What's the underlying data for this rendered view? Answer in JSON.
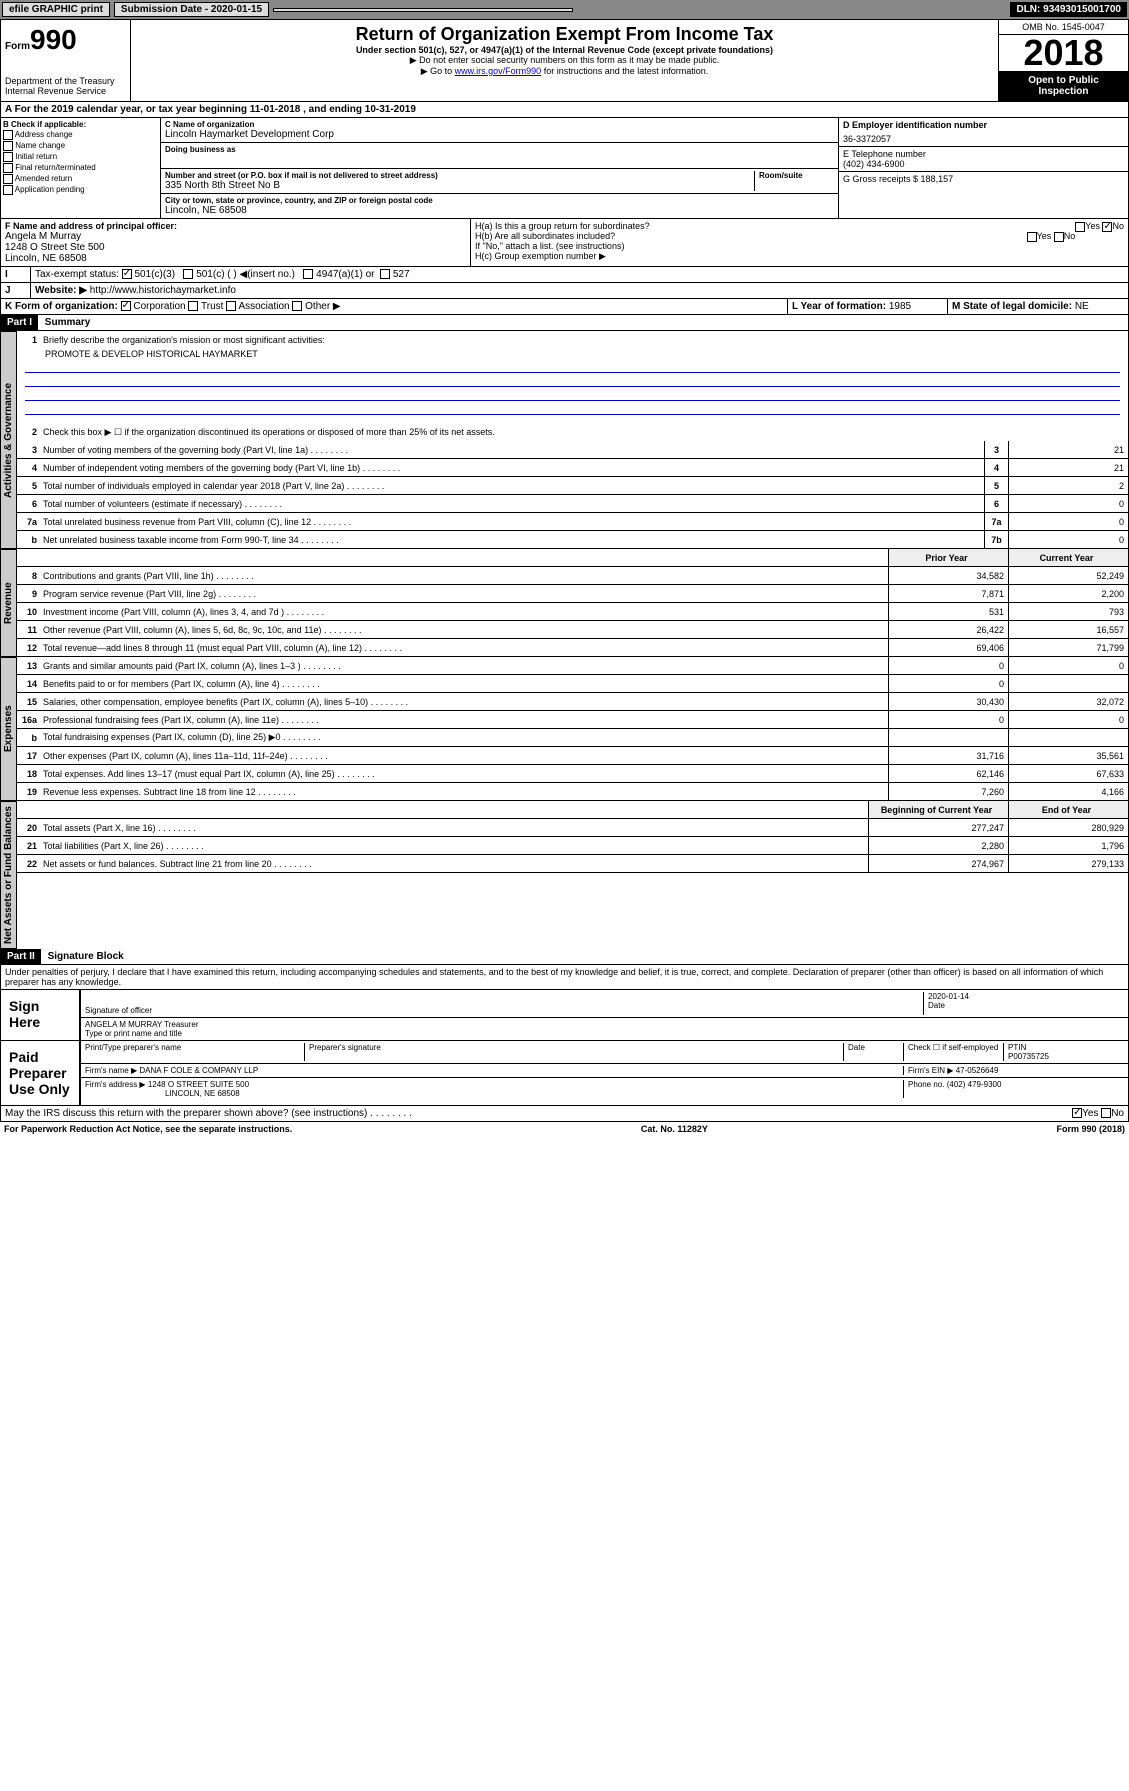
{
  "topbar": {
    "efile": "efile GRAPHIC print",
    "submission": "Submission Date - 2020-01-15",
    "dln": "DLN: 93493015001700"
  },
  "header": {
    "form_label": "Form",
    "form_num": "990",
    "dept": "Department of the Treasury\nInternal Revenue Service",
    "title": "Return of Organization Exempt From Income Tax",
    "subtitle": "Under section 501(c), 527, or 4947(a)(1) of the Internal Revenue Code (except private foundations)",
    "note1": "▶ Do not enter social security numbers on this form as it may be made public.",
    "note2": "▶ Go to www.irs.gov/Form990 for instructions and the latest information.",
    "omb": "OMB No. 1545-0047",
    "year": "2018",
    "open": "Open to Public Inspection"
  },
  "period": "For the 2019 calendar year, or tax year beginning 11-01-2018    , and ending 10-31-2019",
  "box_b": {
    "label": "B Check if applicable:",
    "items": [
      "Address change",
      "Name change",
      "Initial return",
      "Final return/terminated",
      "Amended return",
      "Application pending"
    ]
  },
  "box_c": {
    "name_label": "C Name of organization",
    "name": "Lincoln Haymarket Development Corp",
    "dba_label": "Doing business as",
    "addr_label": "Number and street (or P.O. box if mail is not delivered to street address)",
    "room_label": "Room/suite",
    "addr": "335 North 8th Street No B",
    "city_label": "City or town, state or province, country, and ZIP or foreign postal code",
    "city": "Lincoln, NE  68508"
  },
  "box_d": {
    "label": "D Employer identification number",
    "value": "36-3372057"
  },
  "box_e": {
    "label": "E Telephone number",
    "value": "(402) 434-6900"
  },
  "box_g": {
    "label": "G Gross receipts $",
    "value": "188,157"
  },
  "box_f": {
    "label": "F  Name and address of principal officer:",
    "name": "Angela M Murray",
    "addr1": "1248 O Street Ste 500",
    "addr2": "Lincoln, NE  68508"
  },
  "box_h": {
    "ha": "H(a)  Is this a group return for subordinates?",
    "hb": "H(b)  Are all subordinates included?",
    "hb_note": "If \"No,\" attach a list. (see instructions)",
    "hc": "H(c)  Group exemption number ▶"
  },
  "box_i": {
    "label": "Tax-exempt status:",
    "opt1": "501(c)(3)",
    "opt2": "501(c) (  ) ◀(insert no.)",
    "opt3": "4947(a)(1) or",
    "opt4": "527"
  },
  "box_j": {
    "label": "Website: ▶",
    "value": "http://www.historichaymarket.info"
  },
  "box_k": {
    "label": "K Form of organization:",
    "opts": [
      "Corporation",
      "Trust",
      "Association",
      "Other ▶"
    ]
  },
  "box_l": {
    "label": "L Year of formation:",
    "value": "1985"
  },
  "box_m": {
    "label": "M State of legal domicile:",
    "value": "NE"
  },
  "part1": {
    "header": "Part I",
    "title": "Summary",
    "line1": "Briefly describe the organization's mission or most significant activities:",
    "mission": "PROMOTE & DEVELOP HISTORICAL HAYMARKET",
    "line2": "Check this box ▶ ☐  if the organization discontinued its operations or disposed of more than 25% of its net assets.",
    "tabs": {
      "gov": "Activities & Governance",
      "rev": "Revenue",
      "exp": "Expenses",
      "net": "Net Assets or Fund Balances"
    }
  },
  "summary_lines": [
    {
      "n": "3",
      "d": "Number of voting members of the governing body (Part VI, line 1a)",
      "box": "3",
      "v": "21"
    },
    {
      "n": "4",
      "d": "Number of independent voting members of the governing body (Part VI, line 1b)",
      "box": "4",
      "v": "21"
    },
    {
      "n": "5",
      "d": "Total number of individuals employed in calendar year 2018 (Part V, line 2a)",
      "box": "5",
      "v": "2"
    },
    {
      "n": "6",
      "d": "Total number of volunteers (estimate if necessary)",
      "box": "6",
      "v": "0"
    },
    {
      "n": "7a",
      "d": "Total unrelated business revenue from Part VIII, column (C), line 12",
      "box": "7a",
      "v": "0"
    },
    {
      "n": "b",
      "d": "Net unrelated business taxable income from Form 990-T, line 34",
      "box": "7b",
      "v": "0"
    }
  ],
  "col_headers": {
    "prior": "Prior Year",
    "current": "Current Year",
    "begin": "Beginning of Current Year",
    "end": "End of Year"
  },
  "revenue_lines": [
    {
      "n": "8",
      "d": "Contributions and grants (Part VIII, line 1h)",
      "p": "34,582",
      "c": "52,249"
    },
    {
      "n": "9",
      "d": "Program service revenue (Part VIII, line 2g)",
      "p": "7,871",
      "c": "2,200"
    },
    {
      "n": "10",
      "d": "Investment income (Part VIII, column (A), lines 3, 4, and 7d )",
      "p": "531",
      "c": "793"
    },
    {
      "n": "11",
      "d": "Other revenue (Part VIII, column (A), lines 5, 6d, 8c, 9c, 10c, and 11e)",
      "p": "26,422",
      "c": "16,557"
    },
    {
      "n": "12",
      "d": "Total revenue—add lines 8 through 11 (must equal Part VIII, column (A), line 12)",
      "p": "69,406",
      "c": "71,799"
    }
  ],
  "expense_lines": [
    {
      "n": "13",
      "d": "Grants and similar amounts paid (Part IX, column (A), lines 1–3 )",
      "p": "0",
      "c": "0"
    },
    {
      "n": "14",
      "d": "Benefits paid to or for members (Part IX, column (A), line 4)",
      "p": "0",
      "c": ""
    },
    {
      "n": "15",
      "d": "Salaries, other compensation, employee benefits (Part IX, column (A), lines 5–10)",
      "p": "30,430",
      "c": "32,072"
    },
    {
      "n": "16a",
      "d": "Professional fundraising fees (Part IX, column (A), line 11e)",
      "p": "0",
      "c": "0"
    },
    {
      "n": "b",
      "d": "Total fundraising expenses (Part IX, column (D), line 25) ▶0",
      "p": "",
      "c": ""
    },
    {
      "n": "17",
      "d": "Other expenses (Part IX, column (A), lines 11a–11d, 11f–24e)",
      "p": "31,716",
      "c": "35,561"
    },
    {
      "n": "18",
      "d": "Total expenses. Add lines 13–17 (must equal Part IX, column (A), line 25)",
      "p": "62,146",
      "c": "67,633"
    },
    {
      "n": "19",
      "d": "Revenue less expenses. Subtract line 18 from line 12",
      "p": "7,260",
      "c": "4,166"
    }
  ],
  "net_lines": [
    {
      "n": "20",
      "d": "Total assets (Part X, line 16)",
      "p": "277,247",
      "c": "280,929"
    },
    {
      "n": "21",
      "d": "Total liabilities (Part X, line 26)",
      "p": "2,280",
      "c": "1,796"
    },
    {
      "n": "22",
      "d": "Net assets or fund balances. Subtract line 21 from line 20",
      "p": "274,967",
      "c": "279,133"
    }
  ],
  "part2": {
    "header": "Part II",
    "title": "Signature Block",
    "declaration": "Under penalties of perjury, I declare that I have examined this return, including accompanying schedules and statements, and to the best of my knowledge and belief, it is true, correct, and complete. Declaration of preparer (other than officer) is based on all information of which preparer has any knowledge."
  },
  "sign": {
    "label": "Sign Here",
    "sig_label": "Signature of officer",
    "date": "2020-01-14",
    "date_label": "Date",
    "name": "ANGELA M MURRAY Treasurer",
    "name_label": "Type or print name and title"
  },
  "preparer": {
    "label": "Paid Preparer Use Only",
    "print_label": "Print/Type preparer's name",
    "sig_label": "Preparer's signature",
    "date_label": "Date",
    "check_label": "Check ☐ if self-employed",
    "ptin_label": "PTIN",
    "ptin": "P00735725",
    "firm_name_label": "Firm's name    ▶",
    "firm_name": "DANA F COLE & COMPANY LLP",
    "firm_ein_label": "Firm's EIN ▶",
    "firm_ein": "47-0526649",
    "firm_addr_label": "Firm's address ▶",
    "firm_addr": "1248 O STREET SUITE 500",
    "firm_city": "LINCOLN, NE  68508",
    "phone_label": "Phone no.",
    "phone": "(402) 479-9300"
  },
  "discuss": "May the IRS discuss this return with the preparer shown above? (see instructions)",
  "footer": {
    "paperwork": "For Paperwork Reduction Act Notice, see the separate instructions.",
    "cat": "Cat. No. 11282Y",
    "form": "Form 990 (2018)"
  }
}
